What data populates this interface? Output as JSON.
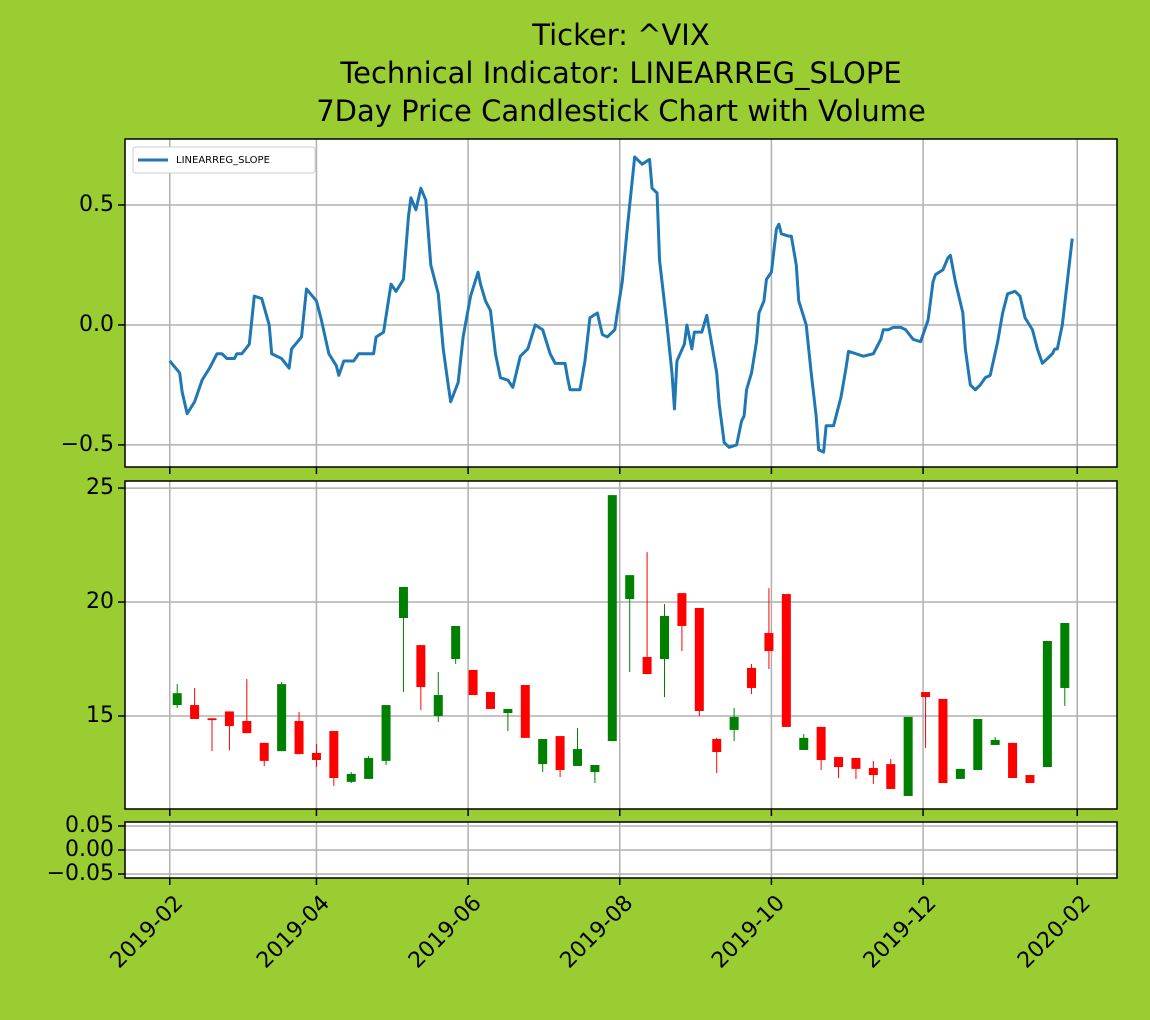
{
  "chart_data": [
    {
      "type": "line",
      "title": [
        "Ticker: ^VIX",
        "Technical Indicator: LINEARREG_SLOPE",
        "7Day Price Candlestick Chart with Volume"
      ],
      "x": [
        "2019-02-01",
        "2019-02-05",
        "2019-02-06",
        "2019-02-08",
        "2019-02-11",
        "2019-02-14",
        "2019-02-17",
        "2019-02-20",
        "2019-02-22",
        "2019-02-24",
        "2019-02-27",
        "2019-02-28",
        "2019-03-02",
        "2019-03-05",
        "2019-03-07",
        "2019-03-10",
        "2019-03-13",
        "2019-03-14",
        "2019-03-18",
        "2019-03-21",
        "2019-03-22",
        "2019-03-26",
        "2019-03-28",
        "2019-04-01",
        "2019-04-03",
        "2019-04-06",
        "2019-04-09",
        "2019-04-10",
        "2019-04-12",
        "2019-04-16",
        "2019-04-18",
        "2019-04-24",
        "2019-04-25",
        "2019-04-28",
        "2019-05-01",
        "2019-05-03",
        "2019-05-06",
        "2019-05-08",
        "2019-05-09",
        "2019-05-11",
        "2019-05-13",
        "2019-05-15",
        "2019-05-17",
        "2019-05-20",
        "2019-05-22",
        "2019-05-24",
        "2019-05-25",
        "2019-05-28",
        "2019-05-30",
        "2019-06-02",
        "2019-06-05",
        "2019-06-06",
        "2019-06-08",
        "2019-06-10",
        "2019-06-12",
        "2019-06-14",
        "2019-06-17",
        "2019-06-19",
        "2019-06-22",
        "2019-06-25",
        "2019-06-28",
        "2019-07-01",
        "2019-07-04",
        "2019-07-06",
        "2019-07-10",
        "2019-07-11",
        "2019-07-12",
        "2019-07-16",
        "2019-07-18",
        "2019-07-20",
        "2019-07-23",
        "2019-07-25",
        "2019-07-27",
        "2019-07-30",
        "2019-07-31",
        "2019-08-02",
        "2019-08-04",
        "2019-08-07",
        "2019-08-10",
        "2019-08-13",
        "2019-08-14",
        "2019-08-16",
        "2019-08-17",
        "2019-08-20",
        "2019-08-22",
        "2019-08-23",
        "2019-08-24",
        "2019-08-27",
        "2019-08-28",
        "2019-08-30",
        "2019-08-31",
        "2019-09-03",
        "2019-09-05",
        "2019-09-07",
        "2019-09-09",
        "2019-09-10",
        "2019-09-12",
        "2019-09-14",
        "2019-09-17",
        "2019-09-19",
        "2019-09-20",
        "2019-09-21",
        "2019-09-23",
        "2019-09-25",
        "2019-09-26",
        "2019-09-28",
        "2019-09-29",
        "2019-10-01",
        "2019-10-03",
        "2019-10-04",
        "2019-10-05",
        "2019-10-08",
        "2019-10-09",
        "2019-10-11",
        "2019-10-12",
        "2019-10-15",
        "2019-10-17",
        "2019-10-19",
        "2019-10-20",
        "2019-10-22",
        "2019-10-23",
        "2019-10-26",
        "2019-10-29",
        "2019-10-31",
        "2019-11-01",
        "2019-11-04",
        "2019-11-07",
        "2019-11-11",
        "2019-11-14",
        "2019-11-15",
        "2019-11-17",
        "2019-11-19",
        "2019-11-22",
        "2019-11-24",
        "2019-11-27",
        "2019-11-30",
        "2019-12-03",
        "2019-12-05",
        "2019-12-06",
        "2019-12-09",
        "2019-12-11",
        "2019-12-12",
        "2019-12-14",
        "2019-12-17",
        "2019-12-18",
        "2019-12-20",
        "2019-12-22",
        "2019-12-24",
        "2019-12-26",
        "2019-12-28",
        "2019-12-31",
        "2020-01-02",
        "2020-01-04",
        "2020-01-07",
        "2020-01-09",
        "2020-01-11",
        "2020-01-14",
        "2020-01-16",
        "2020-01-18",
        "2020-01-22",
        "2020-01-23",
        "2020-01-24",
        "2020-01-26",
        "2020-01-28",
        "2020-01-30"
      ],
      "series": [
        {
          "name": "LINEARREG_SLOPE",
          "color": "#1f77b4",
          "values": [
            -0.15,
            -0.2,
            -0.28,
            -0.37,
            -0.32,
            -0.23,
            -0.18,
            -0.12,
            -0.12,
            -0.14,
            -0.14,
            -0.12,
            -0.12,
            -0.08,
            0.12,
            0.11,
            0.0,
            -0.12,
            -0.14,
            -0.18,
            -0.1,
            -0.05,
            0.15,
            0.1,
            0.02,
            -0.12,
            -0.17,
            -0.21,
            -0.15,
            -0.15,
            -0.12,
            -0.12,
            -0.05,
            -0.03,
            0.17,
            0.14,
            0.19,
            0.45,
            0.53,
            0.48,
            0.57,
            0.52,
            0.25,
            0.13,
            -0.1,
            -0.25,
            -0.32,
            -0.24,
            -0.05,
            0.12,
            0.22,
            0.17,
            0.1,
            0.06,
            -0.12,
            -0.22,
            -0.23,
            -0.26,
            -0.13,
            -0.1,
            0.0,
            -0.02,
            -0.12,
            -0.16,
            -0.16,
            -0.22,
            -0.27,
            -0.27,
            -0.15,
            0.03,
            0.05,
            -0.04,
            -0.05,
            -0.02,
            0.05,
            0.18,
            0.4,
            0.7,
            0.67,
            0.69,
            0.57,
            0.55,
            0.27,
            0.0,
            -0.2,
            -0.35,
            -0.15,
            -0.08,
            0.0,
            -0.1,
            -0.03,
            -0.03,
            0.04,
            -0.08,
            -0.2,
            -0.33,
            -0.49,
            -0.51,
            -0.5,
            -0.4,
            -0.38,
            -0.27,
            -0.2,
            -0.07,
            0.05,
            0.1,
            0.19,
            0.22,
            0.4,
            0.42,
            0.38,
            0.37,
            0.37,
            0.25,
            0.1,
            0.0,
            -0.2,
            -0.38,
            -0.52,
            -0.53,
            -0.42,
            -0.42,
            -0.3,
            -0.18,
            -0.11,
            -0.12,
            -0.13,
            -0.12,
            -0.06,
            -0.02,
            -0.02,
            -0.01,
            -0.01,
            -0.02,
            -0.06,
            -0.07,
            0.02,
            0.18,
            0.21,
            0.23,
            0.28,
            0.29,
            0.18,
            0.05,
            -0.1,
            -0.25,
            -0.27,
            -0.25,
            -0.22,
            -0.21,
            -0.07,
            0.05,
            0.13,
            0.14,
            0.12,
            0.03,
            -0.02,
            -0.1,
            -0.16,
            -0.12,
            -0.1,
            -0.1,
            0.0,
            0.18,
            0.36
          ]
        }
      ],
      "ylim": [
        -0.592,
        0.775
      ],
      "yticks": [
        {
          "value": -0.5,
          "label": "−0.5"
        },
        {
          "value": 0,
          "label": "0.0"
        },
        0.5
      ],
      "grid": true,
      "legend": "upper left"
    },
    {
      "type": "candlestick",
      "x": [
        "2019-02-04",
        "2019-02-11",
        "2019-02-18",
        "2019-02-25",
        "2019-03-04",
        "2019-03-11",
        "2019-03-18",
        "2019-03-25",
        "2019-04-01",
        "2019-04-08",
        "2019-04-15",
        "2019-04-22",
        "2019-04-29",
        "2019-05-06",
        "2019-05-13",
        "2019-05-20",
        "2019-05-27",
        "2019-06-03",
        "2019-06-10",
        "2019-06-17",
        "2019-06-24",
        "2019-07-01",
        "2019-07-08",
        "2019-07-15",
        "2019-07-22",
        "2019-07-29",
        "2019-08-05",
        "2019-08-12",
        "2019-08-19",
        "2019-08-26",
        "2019-09-02",
        "2019-09-09",
        "2019-09-16",
        "2019-09-23",
        "2019-09-30",
        "2019-10-07",
        "2019-10-14",
        "2019-10-21",
        "2019-10-28",
        "2019-11-04",
        "2019-11-11",
        "2019-11-18",
        "2019-11-25",
        "2019-12-02",
        "2019-12-09",
        "2019-12-16",
        "2019-12-23",
        "2019-12-30",
        "2020-01-06",
        "2020-01-13",
        "2020-01-20",
        "2020-01-27"
      ],
      "open": [
        15.48,
        15.48,
        14.9,
        15.2,
        14.78,
        13.82,
        13.46,
        14.78,
        13.38,
        14.34,
        12.11,
        12.24,
        13.03,
        19.3,
        18.11,
        15.0,
        17.5,
        17.02,
        16.05,
        15.13,
        16.36,
        12.89,
        14.12,
        12.81,
        12.54,
        13.9,
        20.13,
        17.59,
        17.5,
        20.39,
        19.74,
        13.99,
        14.39,
        17.11,
        18.64,
        20.35,
        13.51,
        14.52,
        13.2,
        13.16,
        12.72,
        12.89,
        11.49,
        16.05,
        15.75,
        12.24,
        12.63,
        13.73,
        13.82,
        12.41,
        12.76,
        16.23
      ],
      "high": [
        16.4,
        16.23,
        14.9,
        15.2,
        16.62,
        13.82,
        16.49,
        15.18,
        13.77,
        14.34,
        12.54,
        13.25,
        15.48,
        20.66,
        18.11,
        16.93,
        18.95,
        17.02,
        16.05,
        15.31,
        16.36,
        13.99,
        14.12,
        14.47,
        12.85,
        24.69,
        21.18,
        22.19,
        19.91,
        20.39,
        19.74,
        14.04,
        15.35,
        17.28,
        20.61,
        20.35,
        14.21,
        14.52,
        13.2,
        13.16,
        13.03,
        13.11,
        14.96,
        16.05,
        15.75,
        12.68,
        14.87,
        14.08,
        13.82,
        12.41,
        18.29,
        19.08
      ],
      "low": [
        15.35,
        14.87,
        13.46,
        13.5,
        14.25,
        12.8,
        13.46,
        13.33,
        12.76,
        11.93,
        12.06,
        12.24,
        12.85,
        16.05,
        15.26,
        14.74,
        17.28,
        15.92,
        15.31,
        14.34,
        14.04,
        12.54,
        12.32,
        12.81,
        12.06,
        13.9,
        16.93,
        16.84,
        15.83,
        17.85,
        15.0,
        12.5,
        13.9,
        15.96,
        17.06,
        14.52,
        13.51,
        12.63,
        12.28,
        12.24,
        12.02,
        11.8,
        11.49,
        13.6,
        12.06,
        12.24,
        12.63,
        13.73,
        12.28,
        12.06,
        12.76,
        15.44
      ],
      "close": [
        16.0,
        14.87,
        14.82,
        14.56,
        14.25,
        13.03,
        16.4,
        13.33,
        13.07,
        12.28,
        12.46,
        13.16,
        15.48,
        20.66,
        16.27,
        15.92,
        18.95,
        15.92,
        15.31,
        15.31,
        14.04,
        13.99,
        12.63,
        13.55,
        12.85,
        24.69,
        21.18,
        16.84,
        19.39,
        18.95,
        15.22,
        13.42,
        14.96,
        16.23,
        17.85,
        14.52,
        14.04,
        13.07,
        12.76,
        12.68,
        12.41,
        11.8,
        14.96,
        15.83,
        12.06,
        12.68,
        14.87,
        13.95,
        12.28,
        12.06,
        18.29,
        19.08
      ],
      "up_color": "green",
      "down_color": "red",
      "ylim": [
        10.92,
        25.31
      ],
      "yticks": [
        15,
        20,
        25
      ],
      "grid": true
    },
    {
      "type": "bar",
      "ylim": [
        -0.0583,
        0.0583
      ],
      "yticks": [
        {
          "value": -0.05,
          "label": "−0.05"
        },
        {
          "value": 0,
          "label": "0.00"
        },
        0.05
      ],
      "xlim": [
        "2019-01-14",
        "2020-02-17"
      ],
      "xticks": [
        {
          "value": "2019-02-01",
          "label": "2019-02"
        },
        {
          "value": "2019-04-01",
          "label": "2019-04"
        },
        {
          "value": "2019-06-01",
          "label": "2019-06"
        },
        {
          "value": "2019-08-01",
          "label": "2019-08"
        },
        {
          "value": "2019-10-01",
          "label": "2019-10"
        },
        {
          "value": "2019-12-01",
          "label": "2019-12"
        },
        {
          "value": "2020-02-01",
          "label": "2020-02"
        }
      ],
      "grid": true
    }
  ]
}
